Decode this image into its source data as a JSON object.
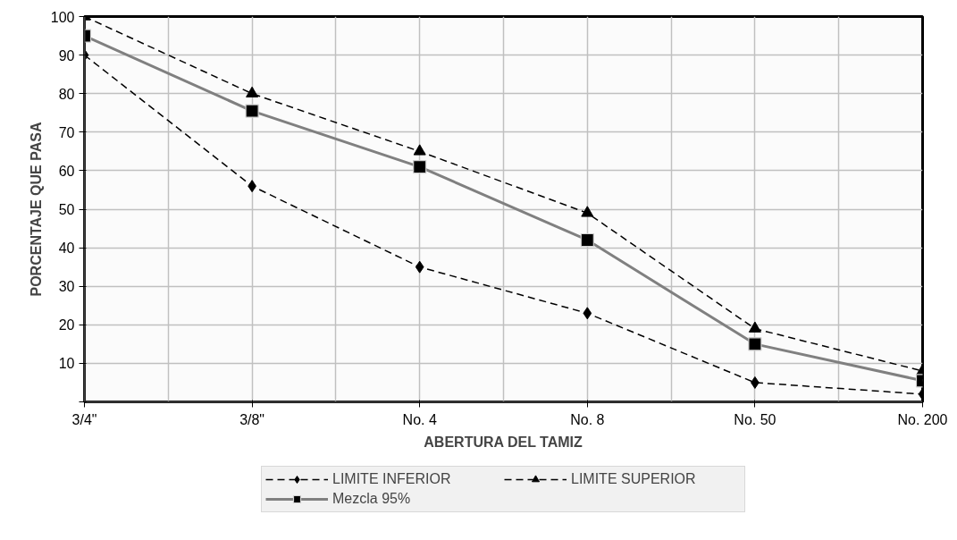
{
  "chart_data": {
    "type": "line",
    "xlabel": "ABERTURA DEL TAMIZ",
    "ylabel": "PORCENTAJE QUE PASA",
    "categories": [
      "3/4\"",
      "3/8\"",
      "No. 4",
      "No. 8",
      "No. 50",
      "No. 200"
    ],
    "ylim": [
      0,
      100
    ],
    "yticks": [
      {
        "value": 0,
        "label": null
      },
      10,
      20,
      30,
      40,
      50,
      60,
      70,
      80,
      90,
      100
    ],
    "grid": true,
    "legend": "bottom",
    "series": [
      {
        "name": "LIMITE INFERIOR",
        "color": "#000000",
        "marker": "diamond",
        "line_style": "dashed",
        "values": [
          90,
          56,
          35,
          23,
          5,
          2
        ]
      },
      {
        "name": "LIMITE SUPERIOR",
        "color": "#000000",
        "marker": "triangle",
        "line_style": "dashed",
        "values": [
          100,
          80,
          65,
          49,
          19,
          8
        ]
      },
      {
        "name": "Mezcla 95%",
        "color": "#808080",
        "marker": "square",
        "line_style": "solid",
        "values": [
          95,
          75.5,
          61,
          42,
          15,
          5.5
        ]
      }
    ]
  }
}
